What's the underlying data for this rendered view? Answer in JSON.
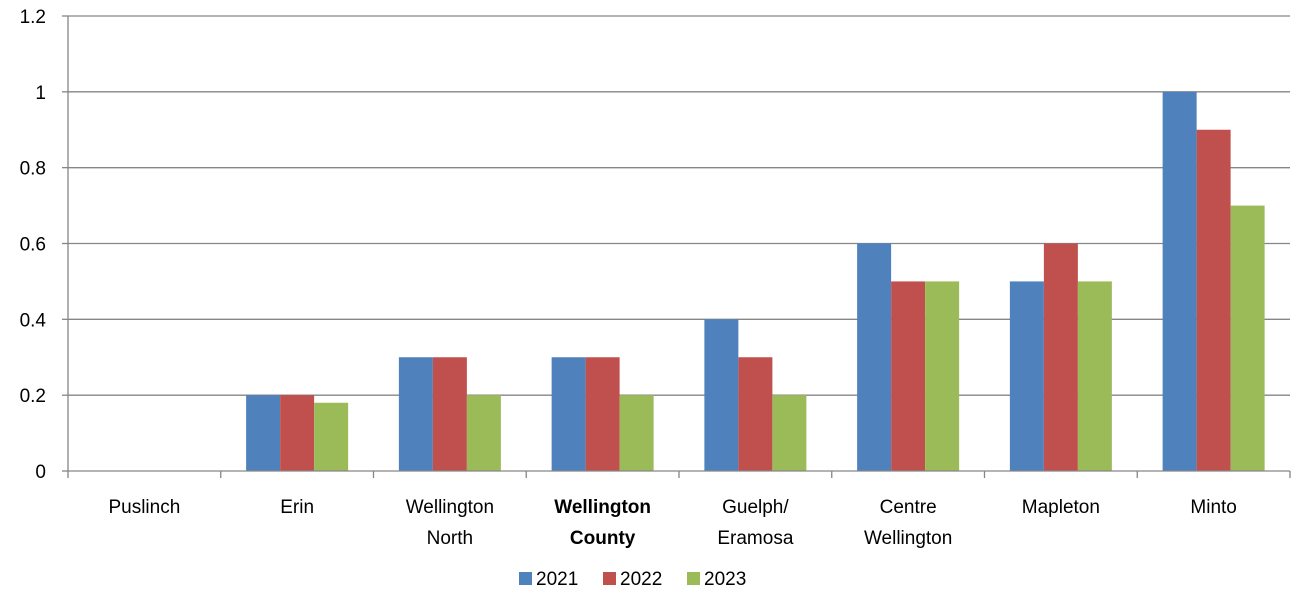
{
  "chart_data": {
    "type": "bar",
    "title": "",
    "xlabel": "",
    "ylabel": "",
    "ylim": [
      0,
      1.2
    ],
    "yticks": [
      "0",
      "0.2",
      "0.4",
      "0.6",
      "0.8",
      "1",
      "1.2"
    ],
    "grid": true,
    "legend_position": "bottom",
    "categories": [
      {
        "lines": [
          "Puslinch"
        ],
        "bold": false
      },
      {
        "lines": [
          "Erin"
        ],
        "bold": false
      },
      {
        "lines": [
          "Wellington",
          "North"
        ],
        "bold": false
      },
      {
        "lines": [
          "Wellington",
          "County"
        ],
        "bold": true
      },
      {
        "lines": [
          "Guelph/",
          "Eramosa"
        ],
        "bold": false
      },
      {
        "lines": [
          "Centre",
          "Wellington"
        ],
        "bold": false
      },
      {
        "lines": [
          "Mapleton"
        ],
        "bold": false
      },
      {
        "lines": [
          "Minto"
        ],
        "bold": false
      }
    ],
    "series": [
      {
        "name": "2021",
        "color": "#4F81BD",
        "values": [
          0,
          0.2,
          0.3,
          0.3,
          0.4,
          0.6,
          0.5,
          1.0
        ]
      },
      {
        "name": "2022",
        "color": "#C0504D",
        "values": [
          0,
          0.2,
          0.3,
          0.3,
          0.3,
          0.5,
          0.6,
          0.9
        ]
      },
      {
        "name": "2023",
        "color": "#9BBB59",
        "values": [
          0,
          0.18,
          0.2,
          0.2,
          0.2,
          0.5,
          0.5,
          0.7
        ]
      }
    ]
  }
}
